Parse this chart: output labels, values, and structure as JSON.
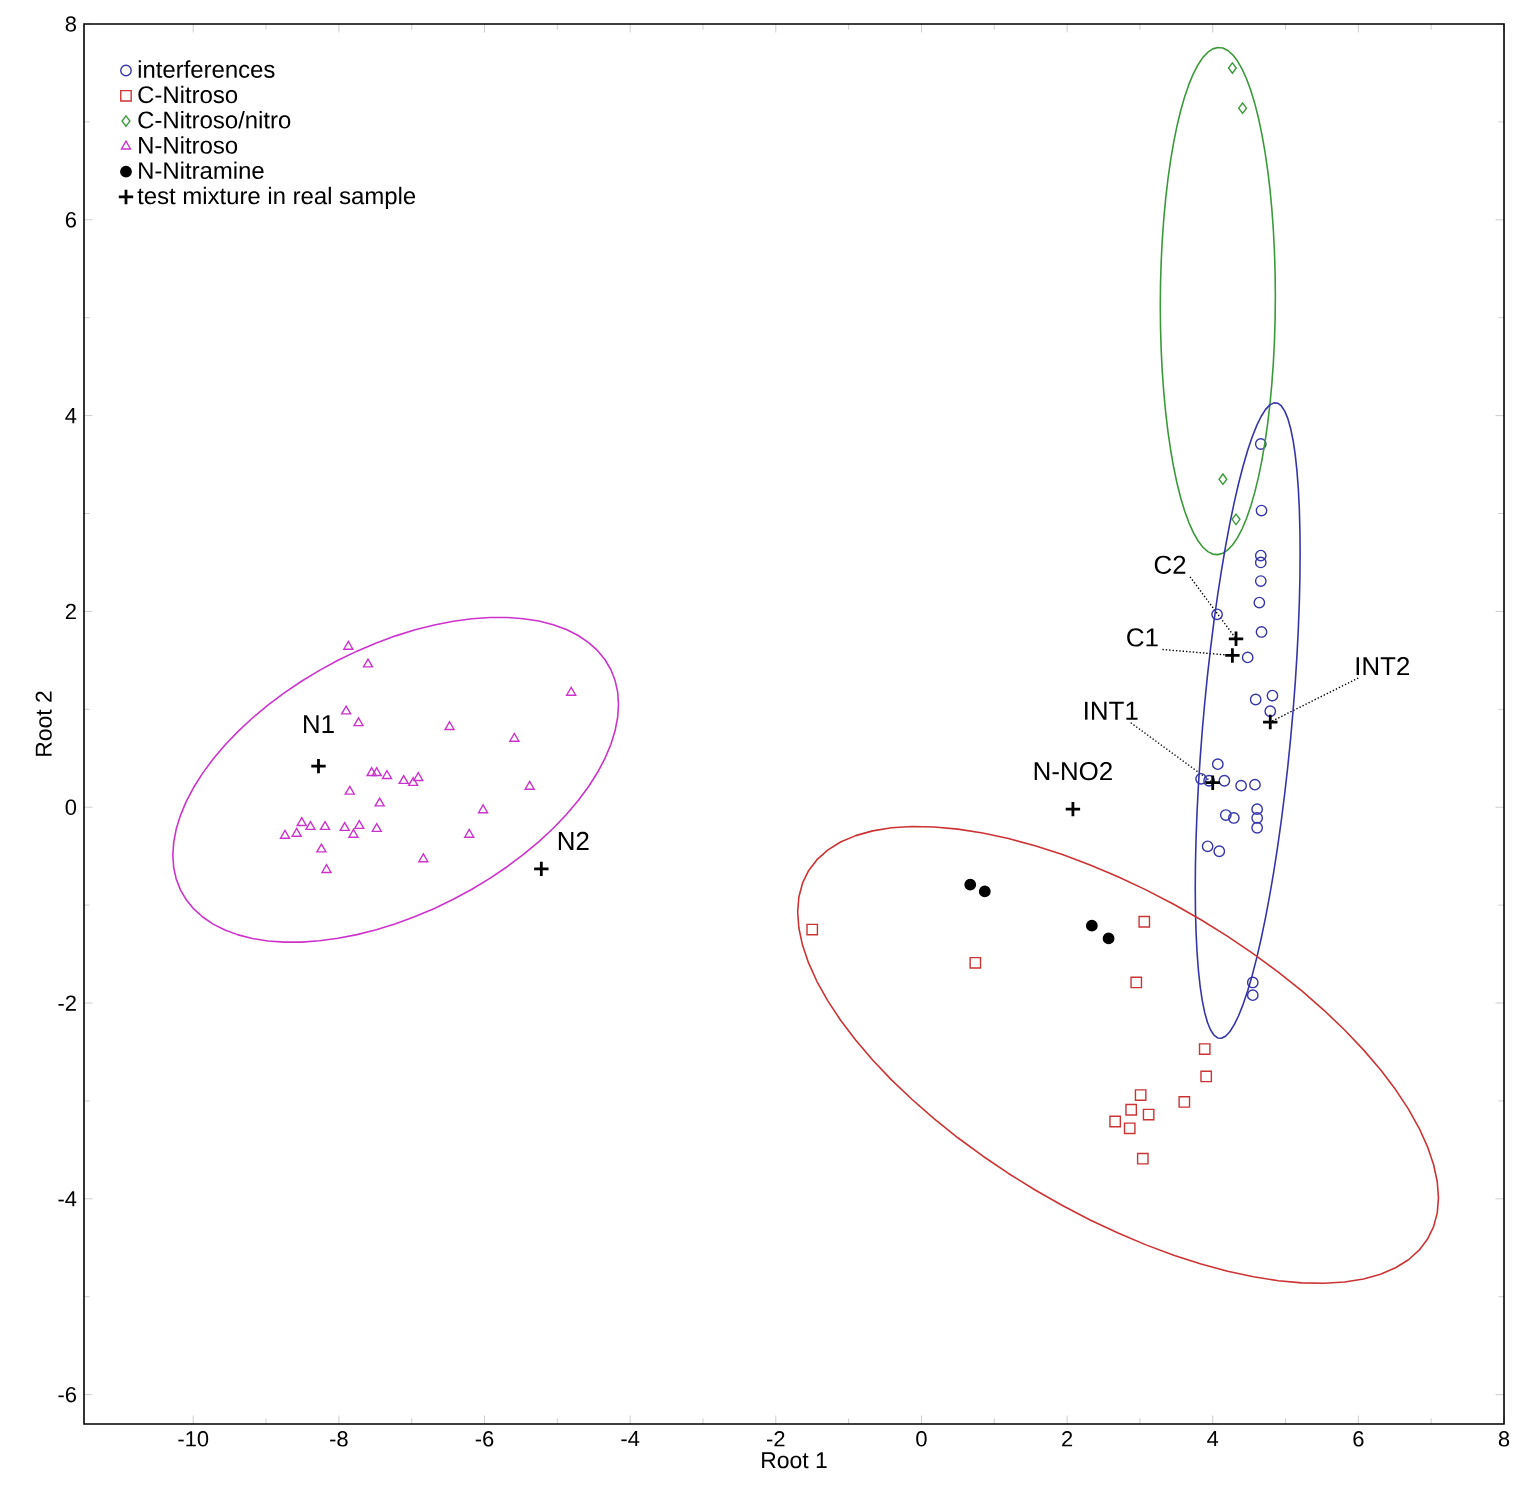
{
  "chart_data": {
    "type": "scatter",
    "xlabel": "Root 1",
    "ylabel": "Root 2",
    "xlim": [
      -11.5,
      8
    ],
    "ylim": [
      -6.3,
      8
    ],
    "xticks": [
      -10,
      -8,
      -6,
      -4,
      -2,
      0,
      2,
      4,
      6,
      8
    ],
    "yticks": [
      -6,
      -4,
      -2,
      0,
      2,
      4,
      6,
      8
    ],
    "grid": false,
    "legend": "top left",
    "series": [
      {
        "name": "interferences",
        "color": "#3535a8",
        "marker": "circle",
        "x": [
          4.66,
          4.67,
          4.66,
          4.66,
          4.66,
          4.64,
          4.06,
          4.67,
          4.48,
          4.59,
          4.82,
          4.79,
          4.07,
          3.84,
          3.95,
          4.16,
          4.39,
          4.58,
          4.61,
          4.61,
          4.61,
          4.18,
          4.29,
          3.93,
          4.09,
          4.55,
          4.55
        ],
        "values": [
          3.71,
          3.03,
          2.57,
          2.5,
          2.31,
          2.09,
          1.97,
          1.79,
          1.53,
          1.1,
          1.14,
          0.98,
          0.44,
          0.29,
          0.27,
          0.27,
          0.22,
          0.23,
          -0.02,
          -0.11,
          -0.21,
          -0.08,
          -0.11,
          -0.4,
          -0.45,
          -1.79,
          -1.92
        ]
      },
      {
        "name": "C-Nitroso",
        "color": "#cc3333",
        "marker": "square",
        "x": [
          -1.5,
          0.74,
          3.06,
          2.95,
          3.89,
          3.91,
          3.61,
          3.01,
          2.88,
          3.12,
          2.66,
          2.86,
          3.04
        ],
        "values": [
          -1.25,
          -1.59,
          -1.17,
          -1.79,
          -2.47,
          -2.75,
          -3.01,
          -2.94,
          -3.09,
          -3.14,
          -3.21,
          -3.28,
          -3.59
        ]
      },
      {
        "name": "C-Nitroso/nitro",
        "color": "#3a9a3a",
        "marker": "diamond",
        "x": [
          4.27,
          4.41,
          4.14,
          4.32
        ],
        "values": [
          7.55,
          7.14,
          3.35,
          2.94
        ]
      },
      {
        "name": "N-Nitroso",
        "color": "#cc33cc",
        "marker": "triangle",
        "x": [
          -7.87,
          -7.6,
          -4.81,
          -7.9,
          -7.73,
          -6.48,
          -5.59,
          -7.55,
          -7.48,
          -7.34,
          -7.11,
          -6.98,
          -6.91,
          -5.38,
          -7.85,
          -7.44,
          -6.02,
          -8.51,
          -8.39,
          -8.19,
          -7.92,
          -7.72,
          -7.48,
          -8.74,
          -8.58,
          -7.8,
          -6.21,
          -8.24,
          -6.84,
          -8.17
        ],
        "values": [
          1.64,
          1.46,
          1.17,
          0.98,
          0.86,
          0.82,
          0.7,
          0.35,
          0.35,
          0.32,
          0.27,
          0.25,
          0.3,
          0.21,
          0.16,
          0.04,
          -0.03,
          -0.16,
          -0.2,
          -0.2,
          -0.21,
          -0.19,
          -0.22,
          -0.29,
          -0.27,
          -0.28,
          -0.28,
          -0.43,
          -0.53,
          -0.64
        ]
      },
      {
        "name": "N-Nitramine",
        "color": "#000000",
        "marker": "circle",
        "x": [
          0.67,
          0.87,
          2.34,
          2.57
        ],
        "values": [
          -0.79,
          -0.86,
          -1.21,
          -1.34
        ]
      },
      {
        "name": "test mixture in real sample",
        "color": "#000000",
        "marker": "cross",
        "x": [
          -8.28,
          -5.22,
          2.08,
          4.32,
          4.27,
          4.0,
          4.79
        ],
        "values": [
          0.42,
          -0.63,
          -0.02,
          1.72,
          1.55,
          0.25,
          0.87
        ]
      }
    ],
    "annotations": [
      {
        "text": "N1",
        "x": -8.28,
        "y": 0.42
      },
      {
        "text": "N2",
        "x": -5.22,
        "y": -0.63
      },
      {
        "text": "N-NO2",
        "x": 2.08,
        "y": -0.02
      },
      {
        "text": "C2",
        "x": 4.32,
        "y": 1.72
      },
      {
        "text": "C1",
        "x": 4.27,
        "y": 1.55
      },
      {
        "text": "INT1",
        "x": 4.0,
        "y": 0.25
      },
      {
        "text": "INT2",
        "x": 4.79,
        "y": 0.87
      }
    ]
  }
}
